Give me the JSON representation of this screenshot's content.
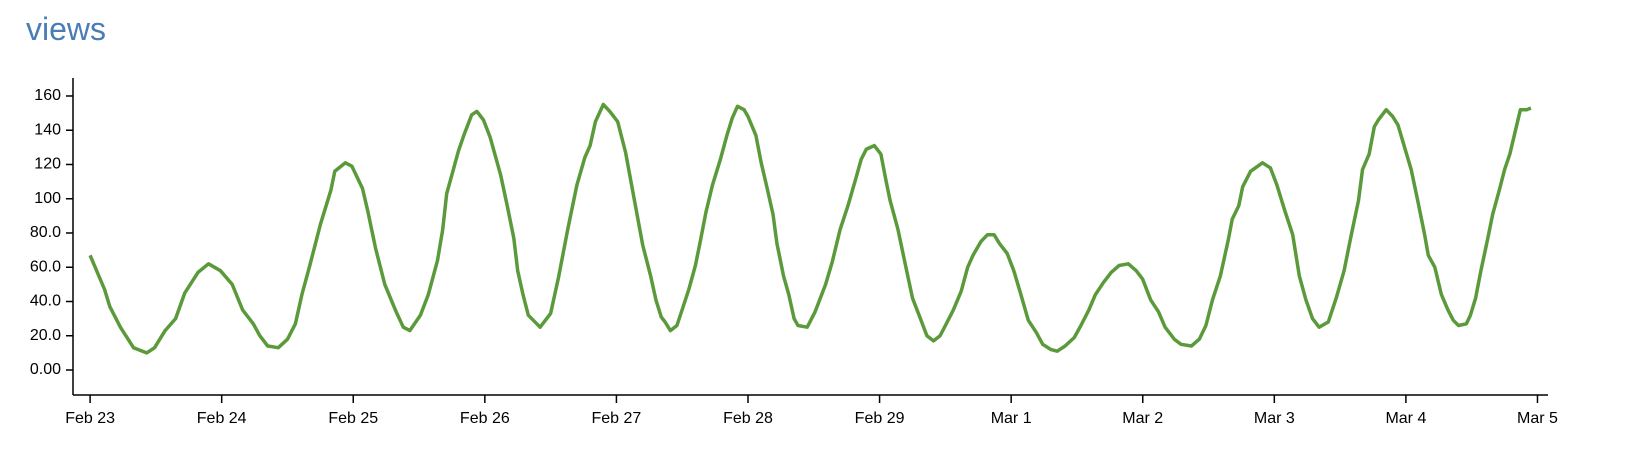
{
  "chart_data": {
    "type": "line",
    "title": "views",
    "color": "#5b9a3b",
    "x": [
      0,
      0.11,
      0.15,
      0.23,
      0.33,
      0.43,
      0.49,
      0.57,
      0.65,
      0.72,
      0.82,
      0.9,
      0.99,
      1.08,
      1.16,
      1.24,
      1.29,
      1.35,
      1.43,
      1.5,
      1.56,
      1.61,
      1.67,
      1.75,
      1.83,
      1.86,
      1.94,
      1.99,
      2.07,
      2.11,
      2.17,
      2.24,
      2.32,
      2.38,
      2.43,
      2.51,
      2.57,
      2.64,
      2.68,
      2.71,
      2.75,
      2.8,
      2.84,
      2.9,
      2.94,
      2.99,
      3.04,
      3.12,
      3.17,
      3.22,
      3.25,
      3.29,
      3.33,
      3.42,
      3.5,
      3.56,
      3.63,
      3.7,
      3.76,
      3.8,
      3.84,
      3.9,
      3.95,
      4.01,
      4.07,
      4.13,
      4.2,
      4.26,
      4.3,
      4.34,
      4.37,
      4.41,
      4.46,
      4.49,
      4.55,
      4.6,
      4.64,
      4.68,
      4.73,
      4.79,
      4.84,
      4.88,
      4.92,
      4.97,
      5.0,
      5.06,
      5.1,
      5.14,
      5.19,
      5.22,
      5.27,
      5.31,
      5.35,
      5.38,
      5.45,
      5.51,
      5.59,
      5.64,
      5.7,
      5.76,
      5.82,
      5.86,
      5.9,
      5.96,
      6.01,
      6.05,
      6.08,
      6.14,
      6.2,
      6.25,
      6.31,
      6.36,
      6.41,
      6.46,
      6.5,
      6.56,
      6.62,
      6.67,
      6.71,
      6.77,
      6.82,
      6.87,
      6.91,
      6.97,
      7.02,
      7.07,
      7.13,
      7.19,
      7.24,
      7.3,
      7.35,
      7.41,
      7.48,
      7.53,
      7.59,
      7.64,
      7.7,
      7.76,
      7.82,
      7.89,
      7.95,
      8.0,
      8.06,
      8.12,
      8.17,
      8.24,
      8.29,
      8.37,
      8.43,
      8.48,
      8.53,
      8.59,
      8.65,
      8.68,
      8.73,
      8.76,
      8.82,
      8.91,
      8.97,
      9.02,
      9.08,
      9.14,
      9.19,
      9.24,
      9.29,
      9.34,
      9.41,
      9.47,
      9.53,
      9.58,
      9.64,
      9.67,
      9.72,
      9.76,
      9.79,
      9.85,
      9.9,
      9.94,
      9.99,
      10.04,
      10.09,
      10.14,
      10.17,
      10.22,
      10.27,
      10.32,
      10.36,
      10.4,
      10.46,
      10.49,
      10.53,
      10.57,
      10.62,
      10.66,
      10.71,
      10.75,
      10.79,
      10.87,
      10.92,
      10.95
    ],
    "values": [
      67,
      47,
      37,
      25,
      13,
      10,
      13,
      23,
      30,
      45,
      57,
      62,
      58,
      50,
      35,
      27,
      20,
      14,
      13,
      18,
      27,
      44,
      61,
      85,
      105,
      116,
      121,
      119,
      106,
      93,
      71,
      50,
      35,
      25,
      23,
      32,
      44,
      64,
      82,
      103,
      114,
      128,
      137,
      149,
      151,
      146,
      136,
      114,
      96,
      77,
      58,
      44,
      32,
      25,
      33,
      54,
      82,
      108,
      124,
      131,
      145,
      155,
      151,
      145,
      127,
      102,
      73,
      55,
      41,
      31,
      28,
      23,
      26,
      33,
      47,
      61,
      76,
      92,
      108,
      123,
      137,
      147,
      154,
      152,
      148,
      137,
      121,
      108,
      91,
      74,
      55,
      44,
      30,
      26,
      25,
      34,
      50,
      63,
      82,
      96,
      112,
      123,
      129,
      131,
      126,
      110,
      99,
      82,
      60,
      42,
      30,
      20,
      17,
      20,
      26,
      35,
      46,
      60,
      67,
      75,
      79,
      79,
      74,
      68,
      58,
      45,
      29,
      22,
      15,
      12,
      11,
      14,
      19,
      26,
      35,
      44,
      51,
      57,
      61,
      62,
      58,
      53,
      41,
      34,
      25,
      18,
      15,
      14,
      18,
      26,
      41,
      55,
      76,
      88,
      96,
      107,
      116,
      121,
      118,
      108,
      93,
      79,
      55,
      41,
      30,
      25,
      28,
      42,
      58,
      77,
      99,
      117,
      126,
      142,
      146,
      152,
      148,
      143,
      130,
      117,
      99,
      80,
      67,
      60,
      44,
      35,
      29,
      26,
      27,
      32,
      42,
      58,
      76,
      91,
      105,
      117,
      126,
      152,
      152,
      153
    ],
    "xlim": [
      -0.13,
      11.08
    ],
    "xticks": [
      {
        "value": 0,
        "label": "Feb 23"
      },
      {
        "value": 1,
        "label": "Feb 24"
      },
      {
        "value": 2,
        "label": "Feb 25"
      },
      {
        "value": 3,
        "label": "Feb 26"
      },
      {
        "value": 4,
        "label": "Feb 27"
      },
      {
        "value": 5,
        "label": "Feb 28"
      },
      {
        "value": 6,
        "label": "Feb 29"
      },
      {
        "value": 7,
        "label": "Mar 1"
      },
      {
        "value": 8,
        "label": "Mar 2"
      },
      {
        "value": 9,
        "label": "Mar 3"
      },
      {
        "value": 10,
        "label": "Mar 4"
      },
      {
        "value": 11,
        "label": "Mar 5"
      }
    ],
    "ylim": [
      -14.6,
      170.5
    ],
    "yticks": [
      {
        "value": 0,
        "label": "0.00"
      },
      {
        "value": 20,
        "label": "20.0"
      },
      {
        "value": 40,
        "label": "40.0"
      },
      {
        "value": 60,
        "label": "60.0"
      },
      {
        "value": 80,
        "label": "80.0"
      },
      100,
      120,
      140,
      160
    ]
  }
}
